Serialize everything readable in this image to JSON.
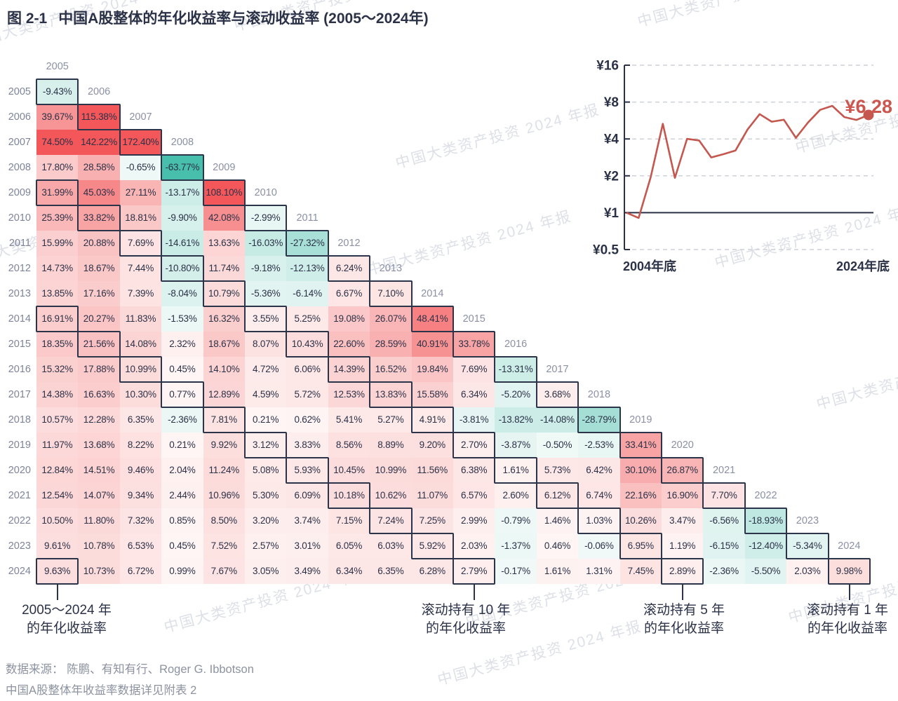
{
  "title": {
    "prefix": "图 2-1",
    "text": "中国A股整体的年化收益率与滚动收益率 (2005～2024年)"
  },
  "watermark_text": "中国大类资产投资 2024 年报",
  "years": [
    2005,
    2006,
    2007,
    2008,
    2009,
    2010,
    2011,
    2012,
    2013,
    2014,
    2015,
    2016,
    2017,
    2018,
    2019,
    2020,
    2021,
    2022,
    2023,
    2024
  ],
  "chart_data": [
    {
      "type": "heatmap",
      "subtype": "lower-triangle-annualized-returns",
      "unit": "%",
      "row_years": [
        2005,
        2006,
        2007,
        2008,
        2009,
        2010,
        2011,
        2012,
        2013,
        2014,
        2015,
        2016,
        2017,
        2018,
        2019,
        2020,
        2021,
        2022,
        2023,
        2024
      ],
      "col_years": [
        2005,
        2006,
        2007,
        2008,
        2009,
        2010,
        2011,
        2012,
        2013,
        2014,
        2015,
        2016,
        2017,
        2018,
        2019,
        2020,
        2021,
        2022,
        2023,
        2024
      ],
      "rows": [
        [
          -9.43
        ],
        [
          39.67,
          115.38
        ],
        [
          74.5,
          142.22,
          172.4
        ],
        [
          17.8,
          28.58,
          -0.65,
          -63.77
        ],
        [
          31.99,
          45.03,
          27.11,
          -13.17,
          108.1
        ],
        [
          25.39,
          33.82,
          18.81,
          -9.9,
          42.08,
          -2.99
        ],
        [
          15.99,
          20.88,
          7.69,
          -14.61,
          13.63,
          -16.03,
          -27.32
        ],
        [
          14.73,
          18.67,
          7.44,
          -10.8,
          11.74,
          -9.18,
          -12.13,
          6.24
        ],
        [
          13.85,
          17.16,
          7.39,
          -8.04,
          10.79,
          -5.36,
          -6.14,
          6.67,
          7.1
        ],
        [
          16.91,
          20.27,
          11.83,
          -1.53,
          16.32,
          3.55,
          5.25,
          19.08,
          26.07,
          48.41
        ],
        [
          18.35,
          21.56,
          14.08,
          2.32,
          18.67,
          8.07,
          10.43,
          22.6,
          28.59,
          40.91,
          33.78
        ],
        [
          15.32,
          17.88,
          10.99,
          0.45,
          14.1,
          4.72,
          6.06,
          14.39,
          16.52,
          19.84,
          7.69,
          -13.31
        ],
        [
          14.38,
          16.63,
          10.3,
          0.77,
          12.89,
          4.59,
          5.72,
          12.53,
          13.83,
          15.58,
          6.34,
          -5.2,
          3.68
        ],
        [
          10.57,
          12.28,
          6.35,
          -2.36,
          7.81,
          0.21,
          0.62,
          5.41,
          5.27,
          4.91,
          -3.81,
          -13.82,
          -14.08,
          -28.79
        ],
        [
          11.97,
          13.68,
          8.22,
          0.21,
          9.92,
          3.12,
          3.83,
          8.56,
          8.89,
          9.2,
          2.7,
          -3.87,
          -0.5,
          -2.53,
          33.41
        ],
        [
          12.84,
          14.51,
          9.46,
          2.04,
          11.24,
          5.08,
          5.93,
          10.45,
          10.99,
          11.56,
          6.38,
          1.61,
          5.73,
          6.42,
          30.1,
          26.87
        ],
        [
          12.54,
          14.07,
          9.34,
          2.44,
          10.96,
          5.3,
          6.09,
          10.18,
          10.62,
          11.07,
          6.57,
          2.6,
          6.12,
          6.74,
          22.16,
          16.9,
          7.7
        ],
        [
          10.5,
          11.8,
          7.32,
          0.85,
          8.5,
          3.2,
          3.74,
          7.15,
          7.24,
          7.25,
          2.99,
          -0.79,
          1.46,
          1.03,
          10.26,
          3.47,
          -6.56,
          -18.93
        ],
        [
          9.61,
          10.78,
          6.53,
          0.45,
          7.52,
          2.57,
          3.01,
          6.05,
          6.03,
          5.92,
          2.03,
          -1.37,
          0.46,
          -0.06,
          6.95,
          1.19,
          -6.15,
          -12.4,
          -5.34
        ],
        [
          9.63,
          10.73,
          6.72,
          0.99,
          7.67,
          3.05,
          3.49,
          6.34,
          6.35,
          6.28,
          2.79,
          -0.17,
          1.61,
          1.31,
          7.45,
          2.89,
          -2.36,
          -5.5,
          2.03,
          9.98
        ]
      ],
      "highlight_rules": {
        "holding_period_offsets_years": [
          1,
          5,
          10
        ],
        "extra_cells_row_col_years": [
          [
            2024,
            2005
          ]
        ]
      }
    },
    {
      "type": "line",
      "x": [
        2004,
        2005,
        2006,
        2007,
        2008,
        2009,
        2010,
        2011,
        2012,
        2013,
        2014,
        2015,
        2016,
        2017,
        2018,
        2019,
        2020,
        2021,
        2022,
        2023,
        2024
      ],
      "values": [
        1.0,
        0.906,
        1.951,
        5.314,
        1.925,
        4.006,
        3.886,
        2.824,
        3.001,
        3.214,
        4.77,
        6.381,
        5.532,
        5.736,
        4.084,
        5.449,
        6.913,
        7.446,
        6.036,
        5.714,
        6.28
      ],
      "y_scale": "log2",
      "y_ticks": [
        {
          "label": "¥16",
          "v": 16
        },
        {
          "label": "¥8",
          "v": 8
        },
        {
          "label": "¥4",
          "v": 4
        },
        {
          "label": "¥2",
          "v": 2
        },
        {
          "label": "¥1",
          "v": 1
        },
        {
          "label": "¥0.5",
          "v": 0.5
        }
      ],
      "baseline_value": 1,
      "x_start_label": "2004年底",
      "x_end_label": "2024年底",
      "end_label": "¥6.28"
    }
  ],
  "annotations": [
    {
      "lines": [
        "2005～2024 年",
        "的年化收益率"
      ]
    },
    {
      "lines": [
        "滚动持有 10 年",
        "的年化收益率"
      ]
    },
    {
      "lines": [
        "滚动持有 5 年",
        "的年化收益率"
      ]
    },
    {
      "lines": [
        "滚动持有 1 年",
        "的年化收益率"
      ]
    }
  ],
  "source": [
    "数据来源：  陈鹏、有知有行、Roger G. Ibbotson",
    "中国A股整体年收益率数据详见附表 2"
  ],
  "colors": {
    "ink": "#2B3147",
    "row_label": "#7D849C",
    "diag_label": "#8A91A6",
    "pos": "#F3575A",
    "pos_base": "#FEF6F5",
    "neg": "#45BDAB",
    "neg_base": "#F0F9F7",
    "line": "#C4574E",
    "end_label": "#CC564E",
    "grid": "#CFD1D8",
    "source_gray": "#8C92A0"
  }
}
